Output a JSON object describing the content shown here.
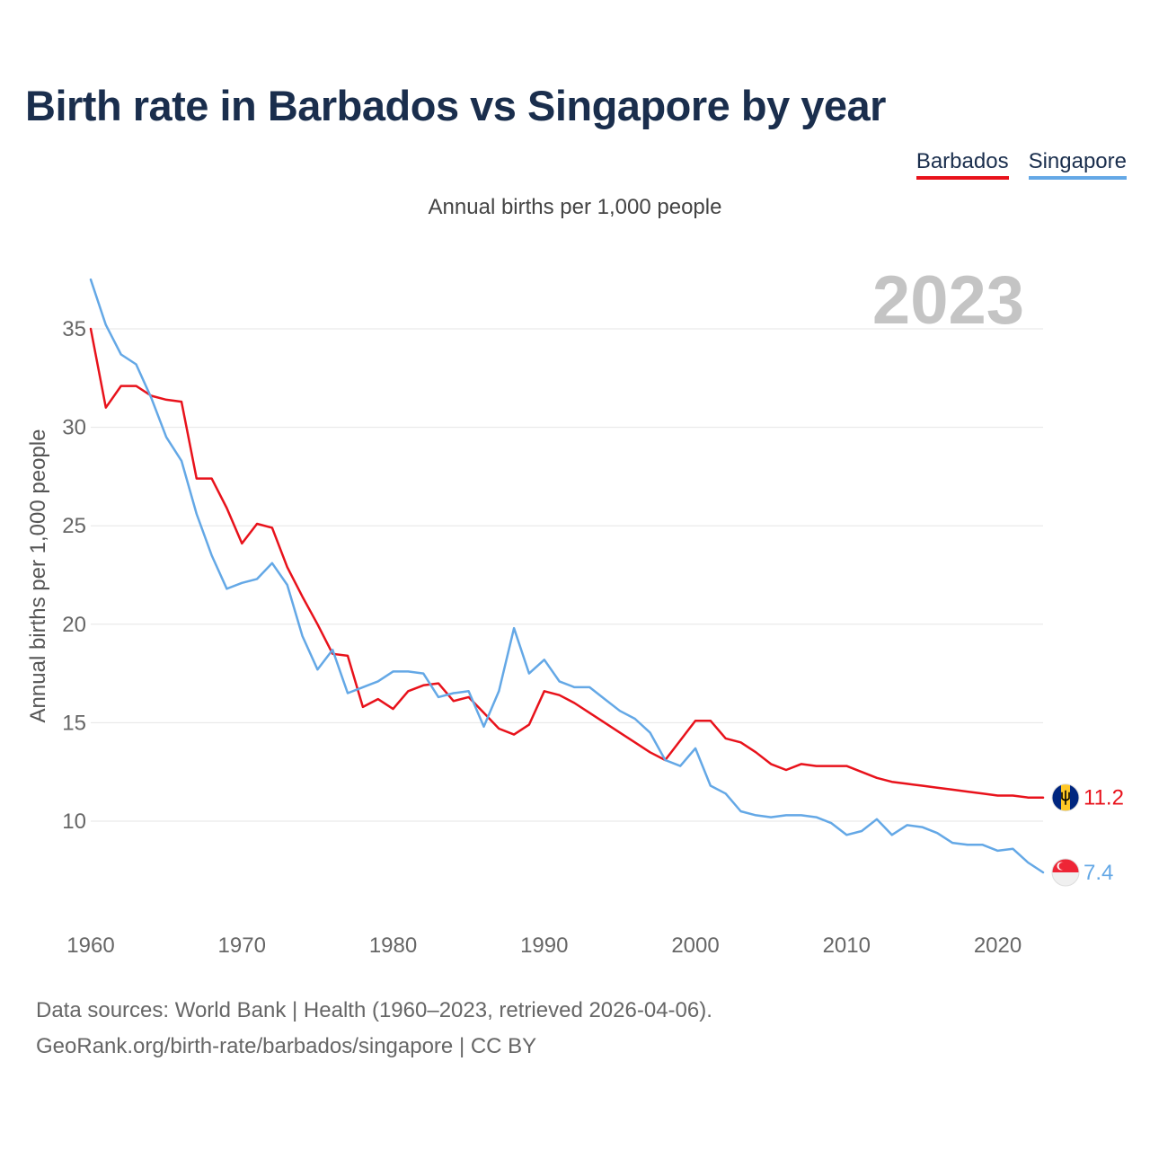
{
  "title": "Birth rate in Barbados vs Singapore by year",
  "subtitle": "Annual births per 1,000 people",
  "year_watermark": "2023",
  "legend": [
    {
      "name": "Barbados",
      "color": "#e8121b"
    },
    {
      "name": "Singapore",
      "color": "#64a8e6"
    }
  ],
  "source": {
    "line1": "Data sources: World Bank | Health (1960–2023, retrieved 2026-04-06).",
    "line2": "GeoRank.org/birth-rate/barbados/singapore | CC BY"
  },
  "chart_data": {
    "type": "line",
    "title": "Birth rate in Barbados vs Singapore by year",
    "xlabel": "",
    "ylabel": "Annual births per 1,000 people",
    "xlim": [
      1960,
      2023
    ],
    "ylim": [
      6,
      38
    ],
    "x_ticks": [
      1960,
      1970,
      1980,
      1990,
      2000,
      2010,
      2020
    ],
    "y_ticks": [
      10,
      15,
      20,
      25,
      30,
      35
    ],
    "grid": true,
    "legend_position": "top-right",
    "end_labels": [
      {
        "series": "Barbados",
        "label": "11.2",
        "color": "#e8121b",
        "flag_icon": "barbados-flag-icon"
      },
      {
        "series": "Singapore",
        "label": "7.4",
        "color": "#64a8e6",
        "flag_icon": "singapore-flag-icon"
      }
    ],
    "x": [
      1960,
      1961,
      1962,
      1963,
      1964,
      1965,
      1966,
      1967,
      1968,
      1969,
      1970,
      1971,
      1972,
      1973,
      1974,
      1975,
      1976,
      1977,
      1978,
      1979,
      1980,
      1981,
      1982,
      1983,
      1984,
      1985,
      1986,
      1987,
      1988,
      1989,
      1990,
      1991,
      1992,
      1993,
      1994,
      1995,
      1996,
      1997,
      1998,
      1999,
      2000,
      2001,
      2002,
      2003,
      2004,
      2005,
      2006,
      2007,
      2008,
      2009,
      2010,
      2011,
      2012,
      2013,
      2014,
      2015,
      2016,
      2017,
      2018,
      2019,
      2020,
      2021,
      2022,
      2023
    ],
    "series": [
      {
        "name": "Barbados",
        "color": "#e8121b",
        "values": [
          35.0,
          31.0,
          32.1,
          32.1,
          31.6,
          31.4,
          31.3,
          27.4,
          27.4,
          25.9,
          24.1,
          25.1,
          24.9,
          22.9,
          21.4,
          20.0,
          18.5,
          18.4,
          15.8,
          16.2,
          15.7,
          16.6,
          16.9,
          17.0,
          16.1,
          16.3,
          15.5,
          14.7,
          14.4,
          14.9,
          16.6,
          16.4,
          16.0,
          15.5,
          15.0,
          14.5,
          14.0,
          13.5,
          13.1,
          14.1,
          15.1,
          15.1,
          14.2,
          14.0,
          13.5,
          12.9,
          12.6,
          12.9,
          12.8,
          12.8,
          12.8,
          12.5,
          12.2,
          12.0,
          11.9,
          11.8,
          11.7,
          11.6,
          11.5,
          11.4,
          11.3,
          11.3,
          11.2,
          11.2
        ]
      },
      {
        "name": "Singapore",
        "color": "#64a8e6",
        "values": [
          37.5,
          35.2,
          33.7,
          33.2,
          31.5,
          29.5,
          28.3,
          25.6,
          23.5,
          21.8,
          22.1,
          22.3,
          23.1,
          22.0,
          19.4,
          17.7,
          18.7,
          16.5,
          16.8,
          17.1,
          17.6,
          17.6,
          17.5,
          16.3,
          16.5,
          16.6,
          14.8,
          16.6,
          19.8,
          17.5,
          18.2,
          17.1,
          16.8,
          16.8,
          16.2,
          15.6,
          15.2,
          14.5,
          13.1,
          12.8,
          13.7,
          11.8,
          11.4,
          10.5,
          10.3,
          10.2,
          10.3,
          10.3,
          10.2,
          9.9,
          9.3,
          9.5,
          10.1,
          9.3,
          9.8,
          9.7,
          9.4,
          8.9,
          8.8,
          8.8,
          8.5,
          8.6,
          7.9,
          7.4
        ]
      }
    ]
  }
}
